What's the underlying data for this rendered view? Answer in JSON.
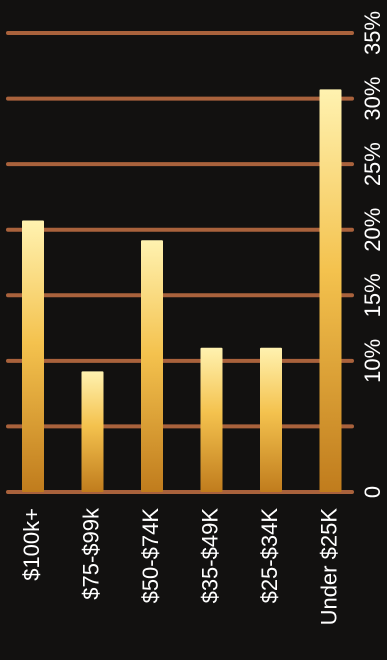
{
  "chart_data": {
    "type": "bar",
    "orientation": "rotated-90-clockwise",
    "categories": [
      "$100k+",
      "$75-$99k",
      "$50-$74K",
      "$35-$49K",
      "$25-$34K",
      "Under $25K"
    ],
    "values": [
      20.7,
      9.2,
      19.2,
      11.0,
      11.0,
      30.7
    ],
    "ylim": [
      0,
      35
    ],
    "ticks": [
      0,
      5,
      10,
      15,
      20,
      25,
      30,
      35
    ],
    "tick_labels": [
      "0",
      "",
      "10%",
      "15%",
      "20%",
      "25%",
      "30%",
      "35%"
    ],
    "grid": true,
    "colors": {
      "background": "#121110",
      "grid": "#a9623c",
      "bar_top": "#fff2b0",
      "bar_mid": "#f4c24e",
      "bar_bottom": "#c07c1d",
      "text": "#ffffff"
    }
  }
}
